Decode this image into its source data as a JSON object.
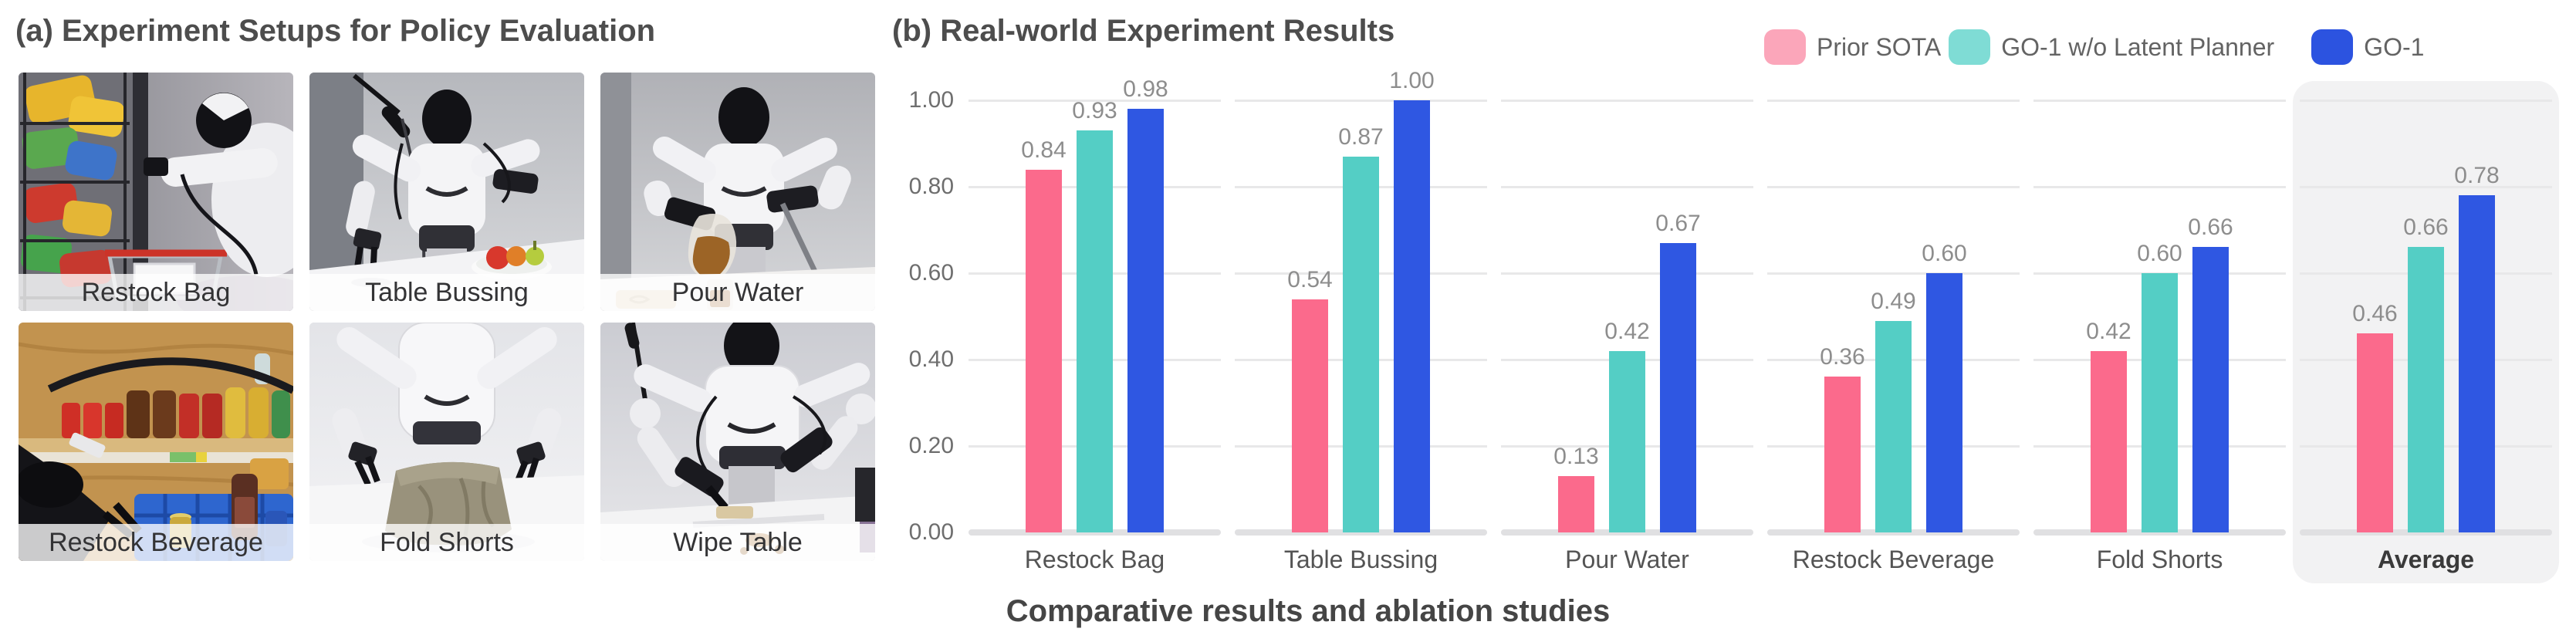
{
  "left": {
    "title": "(a) Experiment Setups for Policy Evaluation",
    "photos": [
      {
        "label": "Restock Bag"
      },
      {
        "label": "Table Bussing"
      },
      {
        "label": "Pour Water"
      },
      {
        "label": "Restock Beverage"
      },
      {
        "label": "Fold Shorts"
      },
      {
        "label": "Wipe Table"
      }
    ]
  },
  "right": {
    "title": "(b) Real-world Experiment Results",
    "caption": "Comparative results and ablation studies"
  },
  "chart_data": {
    "type": "bar",
    "title": "Real-world Experiment Results",
    "categories": [
      "Restock Bag",
      "Table Bussing",
      "Pour Water",
      "Restock Beverage",
      "Fold Shorts",
      "Average"
    ],
    "series": [
      {
        "name": "Prior SOTA",
        "color": "#FB6A8C",
        "legend_color": "#FBA6BA",
        "values": [
          0.84,
          0.54,
          0.13,
          0.36,
          0.42,
          0.46
        ]
      },
      {
        "name": "GO-1 w/o Latent Planner",
        "color": "#54CEC5",
        "legend_color": "#7FDCD5",
        "values": [
          0.93,
          0.87,
          0.42,
          0.49,
          0.6,
          0.66
        ]
      },
      {
        "name": "GO-1",
        "color": "#2F57E2",
        "legend_color": "#2C53E0",
        "values": [
          0.98,
          1.0,
          0.67,
          0.6,
          0.66,
          0.78
        ]
      }
    ],
    "xlabel": "",
    "ylabel": "",
    "ylim": [
      0,
      1.0
    ],
    "yticks": [
      "1.00",
      "0.80",
      "0.60",
      "0.40",
      "0.20",
      "0.00"
    ],
    "grid": true,
    "legend_position": "top-right",
    "value_labels": true,
    "highlight_category": "Average",
    "highlight_background": "#F2F2F3"
  }
}
